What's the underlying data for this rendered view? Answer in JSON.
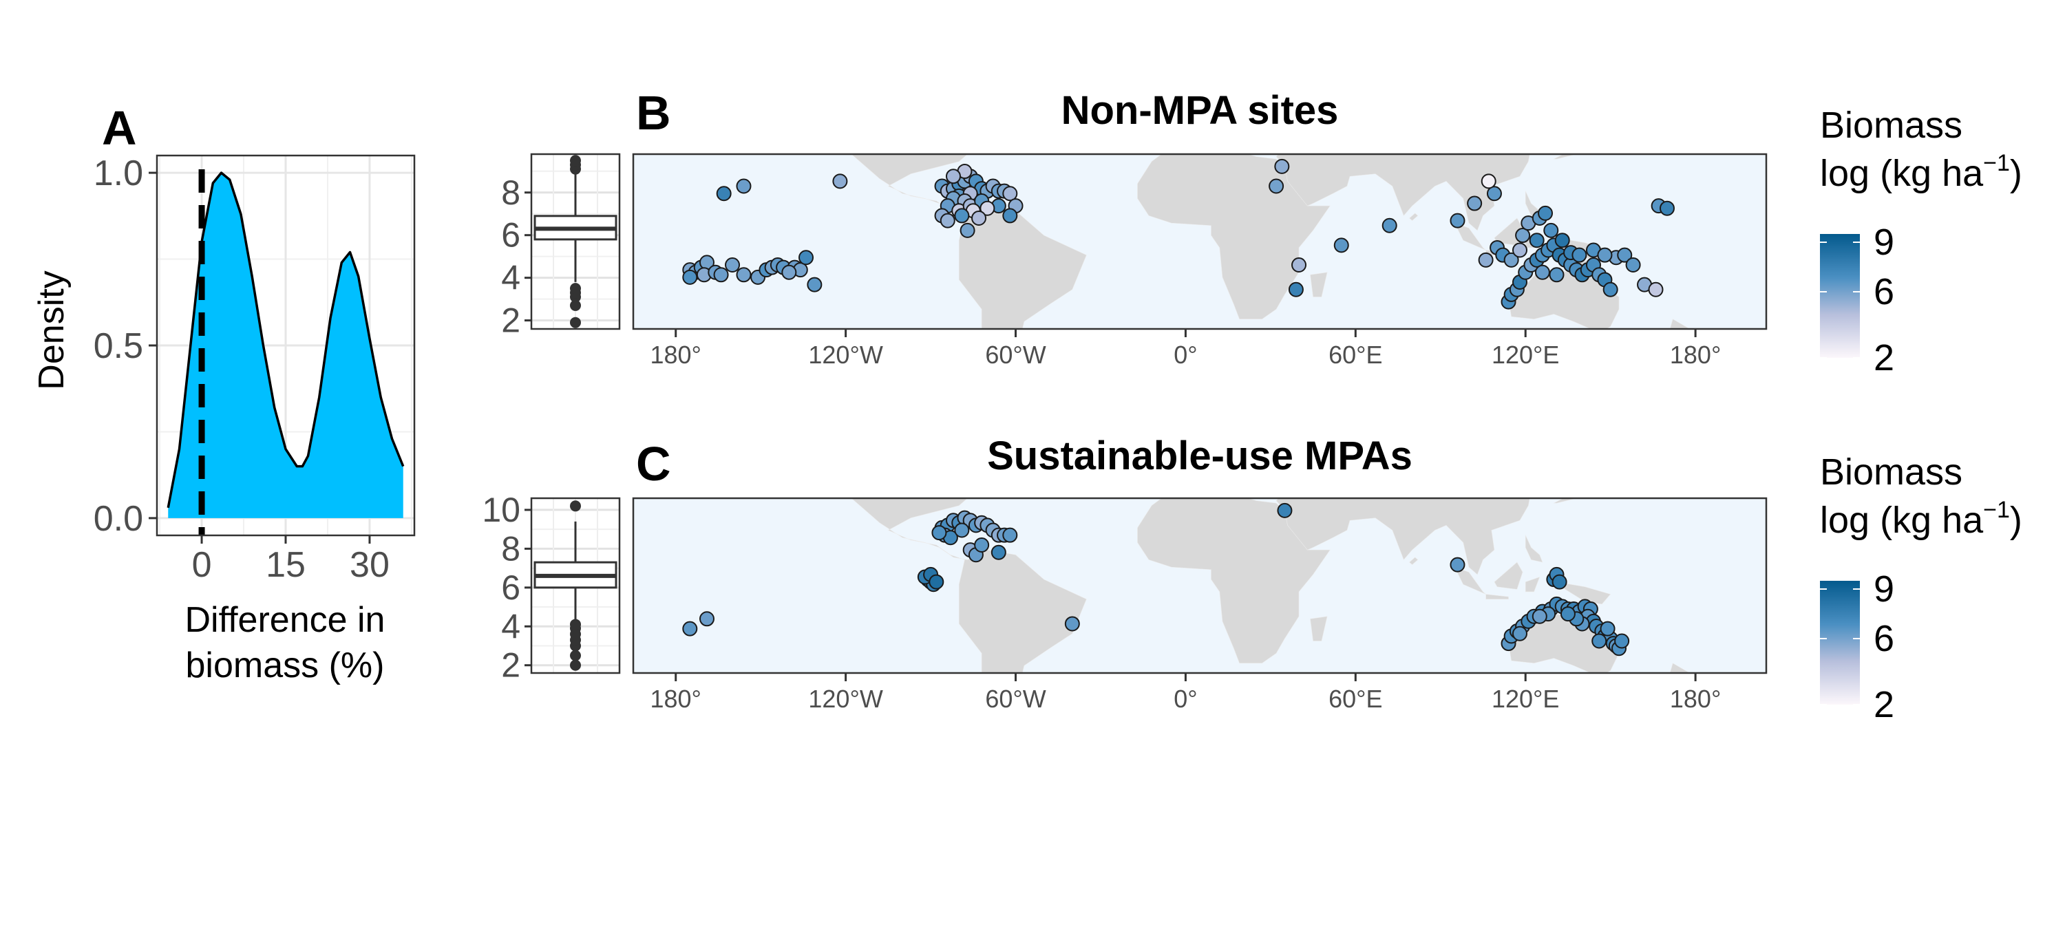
{
  "panels": {
    "a": {
      "letter": "A",
      "chart_data": {
        "type": "area",
        "title": "",
        "xlabel": [
          "Difference in",
          "biomass (%)"
        ],
        "ylabel": "Density",
        "xlim": [
          -8,
          38
        ],
        "ylim": [
          -0.05,
          1.05
        ],
        "x_ticks": [
          0,
          15,
          30
        ],
        "y_ticks": [
          0.0,
          0.5,
          1.0
        ],
        "y_tick_labels": [
          "0.0",
          "0.5",
          "1.0"
        ],
        "x": [
          -6,
          -4,
          -2,
          0,
          2,
          3.5,
          5,
          7,
          9,
          11,
          13,
          15,
          17,
          18,
          19,
          21,
          23,
          25,
          26.5,
          28,
          30,
          32,
          34,
          36
        ],
        "y": [
          0.03,
          0.2,
          0.5,
          0.8,
          0.97,
          1.0,
          0.98,
          0.88,
          0.7,
          0.5,
          0.32,
          0.2,
          0.15,
          0.15,
          0.18,
          0.35,
          0.58,
          0.74,
          0.77,
          0.7,
          0.52,
          0.35,
          0.23,
          0.15
        ],
        "reference_line": {
          "x": 0,
          "style": "dashed"
        },
        "fill_color": "#00BFFF"
      }
    },
    "b": {
      "letter": "B",
      "title": "Non-MPA sites",
      "boxplot": {
        "min": 3.8,
        "q1": 5.8,
        "median": 6.3,
        "q3": 6.9,
        "max": 8.9,
        "outliers": [
          1.9,
          2.7,
          3.1,
          3.3,
          3.5,
          9.1,
          9.3,
          9.5
        ],
        "ylim": [
          1.6,
          9.8
        ],
        "ticks": [
          2,
          4,
          6,
          8
        ]
      },
      "legend": {
        "title_line1": "Biomass",
        "title_line2": "log (kg ha",
        "superscript": "−1",
        "close": ")",
        "ticks": [
          2,
          6,
          9
        ],
        "min": 2,
        "max": 9.5
      },
      "chart_data": {
        "type": "scatter",
        "xlim": [
          -195,
          205
        ],
        "ylim": [
          -38,
          33
        ],
        "x_ticks": [
          -180,
          -120,
          -60,
          0,
          60,
          120,
          180
        ],
        "x_tick_labels": [
          "180°",
          "120°W",
          "60°W",
          "0°",
          "60°E",
          "120°E",
          "180°"
        ],
        "points": [
          [
            -163,
            17,
            7.5
          ],
          [
            -156,
            20,
            6.2
          ],
          [
            -122,
            22,
            5.5
          ],
          [
            -175,
            -14,
            5.8
          ],
          [
            -173,
            -15,
            6.0
          ],
          [
            -171,
            -13,
            6.5
          ],
          [
            -169,
            -11,
            6.0
          ],
          [
            -175,
            -17,
            6.8
          ],
          [
            -170,
            -16,
            5.6
          ],
          [
            -166,
            -15,
            6.2
          ],
          [
            -160,
            -12,
            6.0
          ],
          [
            -156,
            -16,
            6.0
          ],
          [
            -151,
            -17,
            6.1
          ],
          [
            -148,
            -14,
            6.8
          ],
          [
            -146,
            -13,
            6.0
          ],
          [
            -144,
            -12,
            6.4
          ],
          [
            -142,
            -13,
            6.5
          ],
          [
            -138,
            -13,
            6.2
          ],
          [
            -136,
            -14,
            6.0
          ],
          [
            -134,
            -9,
            7.2
          ],
          [
            -131,
            -20,
            6.5
          ],
          [
            -140,
            -15,
            5.9
          ],
          [
            -164,
            -16,
            6.2
          ],
          [
            -86,
            20,
            6.5
          ],
          [
            -84,
            18,
            5.0
          ],
          [
            -82,
            19,
            6.0
          ],
          [
            -80,
            21,
            7.0
          ],
          [
            -78,
            22,
            6.0
          ],
          [
            -76,
            24,
            5.5
          ],
          [
            -74,
            22,
            6.8
          ],
          [
            -72,
            19,
            7.0
          ],
          [
            -70,
            18,
            6.0
          ],
          [
            -68,
            20,
            5.5
          ],
          [
            -66,
            18,
            6.2
          ],
          [
            -64,
            18,
            5.8
          ],
          [
            -62,
            17,
            5.0
          ],
          [
            -80,
            16,
            6.5
          ],
          [
            -82,
            15,
            6.0
          ],
          [
            -76,
            17,
            4.8
          ],
          [
            -78,
            14,
            5.2
          ],
          [
            -84,
            12,
            6.3
          ],
          [
            -86,
            8,
            5.5
          ],
          [
            -80,
            10,
            4.0
          ],
          [
            -76,
            12,
            5.0
          ],
          [
            -72,
            14,
            6.5
          ],
          [
            -66,
            12,
            6.8
          ],
          [
            -60,
            12,
            5.5
          ],
          [
            -78,
            26,
            4.5
          ],
          [
            -82,
            24,
            5.0
          ],
          [
            -75,
            10,
            3.5
          ],
          [
            -79,
            8,
            6.8
          ],
          [
            -77,
            2,
            6.0
          ],
          [
            -84,
            6,
            5.3
          ],
          [
            -62,
            8,
            7.0
          ],
          [
            -70,
            11,
            3.5
          ],
          [
            -73,
            7,
            4.8
          ],
          [
            32,
            20,
            6.0
          ],
          [
            34,
            28,
            5.5
          ],
          [
            40,
            -12,
            5.0
          ],
          [
            39,
            -22,
            7.5
          ],
          [
            55,
            -4,
            6.5
          ],
          [
            72,
            4,
            6.6
          ],
          [
            96,
            6,
            6.5
          ],
          [
            102,
            13,
            6.0
          ],
          [
            109,
            17,
            6.5
          ],
          [
            107,
            22,
            2.3
          ],
          [
            114,
            -27,
            7.0
          ],
          [
            115,
            -24,
            7.2
          ],
          [
            117,
            -22,
            6.5
          ],
          [
            118,
            -19,
            7.8
          ],
          [
            120,
            -15,
            6.5
          ],
          [
            122,
            -12,
            6.0
          ],
          [
            124,
            -10,
            7.5
          ],
          [
            126,
            -8,
            6.8
          ],
          [
            128,
            -6,
            7.0
          ],
          [
            130,
            -4,
            7.2
          ],
          [
            132,
            -8,
            8.0
          ],
          [
            134,
            -10,
            7.5
          ],
          [
            136,
            -12,
            6.8
          ],
          [
            138,
            -14,
            7.0
          ],
          [
            140,
            -16,
            7.8
          ],
          [
            142,
            -14,
            7.5
          ],
          [
            144,
            -12,
            7.0
          ],
          [
            146,
            -16,
            6.5
          ],
          [
            148,
            -18,
            7.5
          ],
          [
            150,
            -22,
            7.0
          ],
          [
            119,
            0,
            6.0
          ],
          [
            121,
            5,
            5.8
          ],
          [
            125,
            7,
            6.5
          ],
          [
            127,
            9,
            7.2
          ],
          [
            129,
            2,
            6.8
          ],
          [
            124,
            -2,
            7.5
          ],
          [
            133,
            -2,
            8.2
          ],
          [
            136,
            -7,
            7.5
          ],
          [
            110,
            -5,
            6.5
          ],
          [
            112,
            -8,
            7.0
          ],
          [
            115,
            -10,
            6.0
          ],
          [
            106,
            -10,
            5.5
          ],
          [
            152,
            -9,
            6.0
          ],
          [
            155,
            -8,
            6.5
          ],
          [
            158,
            -12,
            6.5
          ],
          [
            162,
            -20,
            5.5
          ],
          [
            166,
            -22,
            4.2
          ],
          [
            167,
            12,
            6.6
          ],
          [
            170,
            11,
            7.5
          ],
          [
            118,
            -6,
            5.0
          ],
          [
            126,
            -15,
            6.3
          ],
          [
            131,
            -16,
            6.6
          ],
          [
            139,
            -8,
            7.0
          ],
          [
            144,
            -6,
            6.8
          ],
          [
            148,
            -8,
            6.4
          ]
        ]
      }
    },
    "c": {
      "letter": "C",
      "title": "Sustainable-use MPAs",
      "boxplot": {
        "min": 4.2,
        "q1": 6.0,
        "median": 6.6,
        "q3": 7.3,
        "max": 9.4,
        "outliers": [
          2.0,
          2.5,
          3.0,
          3.3,
          3.6,
          3.9,
          4.1,
          10.2
        ],
        "ylim": [
          1.6,
          10.6
        ],
        "ticks": [
          2,
          4,
          6,
          8,
          10
        ]
      },
      "legend": {
        "title_line1": "Biomass",
        "title_line2": "log (kg ha",
        "superscript": "−1",
        "close": ")",
        "ticks": [
          2,
          6,
          9
        ],
        "min": 2,
        "max": 9.5
      },
      "chart_data": {
        "type": "scatter",
        "xlim": [
          -195,
          205
        ],
        "ylim": [
          -38,
          33
        ],
        "x_ticks": [
          -180,
          -120,
          -60,
          0,
          60,
          120,
          180
        ],
        "x_tick_labels": [
          "180°",
          "120°W",
          "60°W",
          "0°",
          "60°E",
          "120°E",
          "180°"
        ],
        "points": [
          [
            -175,
            -20,
            6.5
          ],
          [
            -169,
            -16,
            6.2
          ],
          [
            -40,
            -18,
            6.4
          ],
          [
            -86,
            21,
            6.5
          ],
          [
            -84,
            22,
            7.0
          ],
          [
            -82,
            24,
            6.2
          ],
          [
            -80,
            23,
            7.0
          ],
          [
            -78,
            25,
            6.0
          ],
          [
            -76,
            24,
            5.8
          ],
          [
            -74,
            22,
            6.5
          ],
          [
            -72,
            23,
            5.5
          ],
          [
            -70,
            22,
            6.0
          ],
          [
            -68,
            20,
            5.8
          ],
          [
            -66,
            18,
            5.5
          ],
          [
            -64,
            18,
            6.2
          ],
          [
            -62,
            18,
            6.5
          ],
          [
            -85,
            18,
            6.0
          ],
          [
            -83,
            17,
            7.2
          ],
          [
            -87,
            19,
            6.8
          ],
          [
            -79,
            20,
            6.5
          ],
          [
            -76,
            12,
            5.5
          ],
          [
            -74,
            10,
            6.3
          ],
          [
            -72,
            14,
            6.5
          ],
          [
            -66,
            11,
            7.5
          ],
          [
            -91,
            0,
            8.5
          ],
          [
            -90,
            -1,
            8.0
          ],
          [
            -89,
            -2,
            7.5
          ],
          [
            -92,
            1,
            7.8
          ],
          [
            -90,
            2,
            8.2
          ],
          [
            -88,
            -1,
            8.5
          ],
          [
            35,
            28,
            7.5
          ],
          [
            96,
            6,
            6.5
          ],
          [
            114,
            -26,
            6.5
          ],
          [
            115,
            -23,
            6.8
          ],
          [
            117,
            -21,
            7.0
          ],
          [
            119,
            -19,
            6.5
          ],
          [
            121,
            -17,
            7.2
          ],
          [
            123,
            -15,
            6.8
          ],
          [
            126,
            -13,
            7.0
          ],
          [
            129,
            -12,
            6.5
          ],
          [
            131,
            -10,
            7.2
          ],
          [
            133,
            -11,
            6.8
          ],
          [
            135,
            -12,
            7.0
          ],
          [
            137,
            -12,
            7.5
          ],
          [
            139,
            -13,
            6.8
          ],
          [
            141,
            -11,
            7.2
          ],
          [
            143,
            -12,
            7.0
          ],
          [
            142,
            -15,
            6.5
          ],
          [
            144,
            -17,
            7.5
          ],
          [
            145,
            -19,
            7.2
          ],
          [
            147,
            -21,
            7.0
          ],
          [
            148,
            -23,
            7.5
          ],
          [
            150,
            -24,
            6.8
          ],
          [
            151,
            -26,
            7.2
          ],
          [
            152,
            -27,
            6.5
          ],
          [
            153,
            -28,
            6.8
          ],
          [
            146,
            -25,
            7.0
          ],
          [
            140,
            -18,
            6.5
          ],
          [
            138,
            -16,
            7.0
          ],
          [
            118,
            -22,
            6.5
          ],
          [
            128,
            -14,
            6.6
          ],
          [
            135,
            -14,
            7.2
          ],
          [
            130,
            0,
            7.8
          ],
          [
            131,
            2,
            7.4
          ],
          [
            132,
            -1,
            8.0
          ],
          [
            125,
            -15,
            6.2
          ],
          [
            149,
            -20,
            6.8
          ],
          [
            154,
            -25,
            7.0
          ]
        ]
      }
    }
  }
}
